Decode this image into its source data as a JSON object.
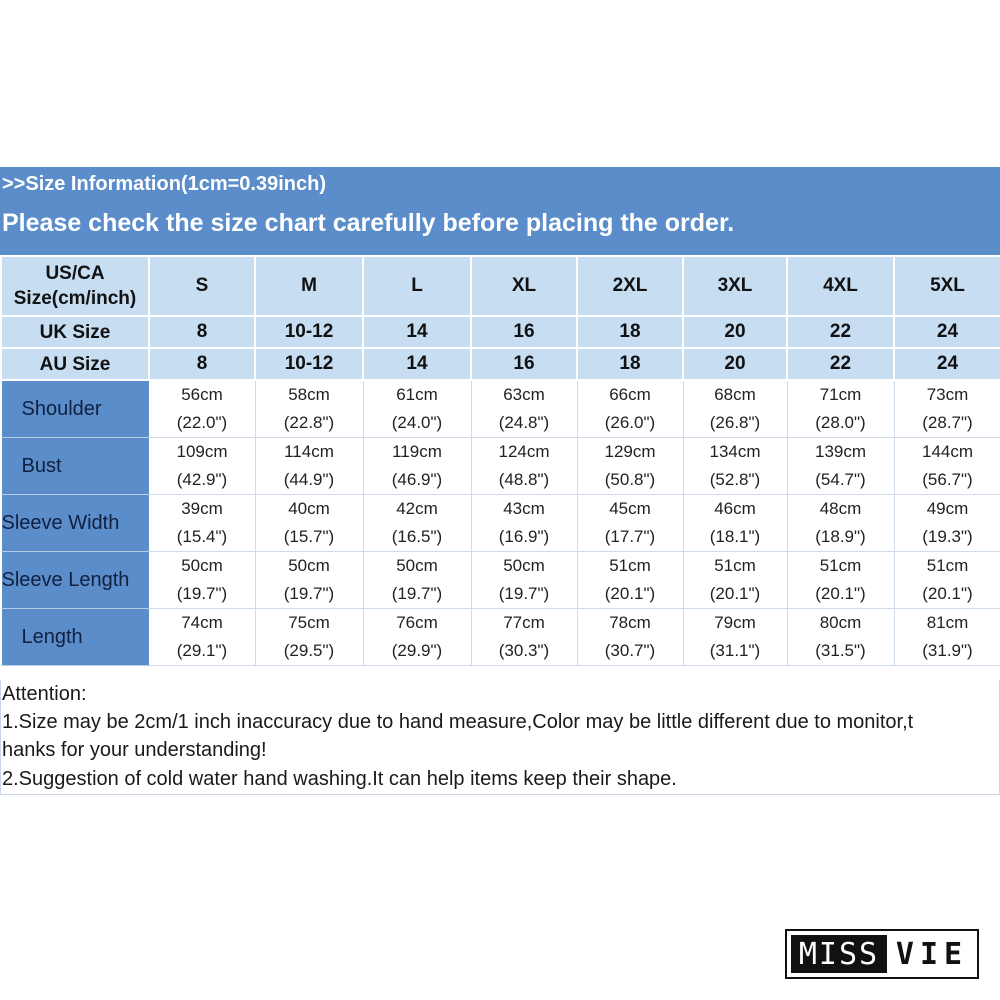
{
  "header": {
    "info": ">>Size Information(1cm=0.39inch)",
    "notice": "Please check the size chart carefully before placing the order."
  },
  "table": {
    "header_rows": [
      {
        "label_lines": [
          "US/CA",
          "Size(cm/inch)"
        ],
        "values": [
          "S",
          "M",
          "L",
          "XL",
          "2XL",
          "3XL",
          "4XL",
          "5XL"
        ]
      },
      {
        "label_lines": [
          "UK Size"
        ],
        "values": [
          "8",
          "10-12",
          "14",
          "16",
          "18",
          "20",
          "22",
          "24"
        ]
      },
      {
        "label_lines": [
          "AU Size"
        ],
        "values": [
          "8",
          "10-12",
          "14",
          "16",
          "18",
          "20",
          "22",
          "24"
        ]
      }
    ],
    "rows": [
      {
        "label": "Shoulder",
        "cm": [
          "56cm",
          "58cm",
          "61cm",
          "63cm",
          "66cm",
          "68cm",
          "71cm",
          "73cm"
        ],
        "inch": [
          "(22.0\")",
          "(22.8\")",
          "(24.0\")",
          "(24.8\")",
          "(26.0\")",
          "(26.8\")",
          "(28.0\")",
          "(28.7\")"
        ]
      },
      {
        "label": "Bust",
        "cm": [
          "109cm",
          "114cm",
          "119cm",
          "124cm",
          "129cm",
          "134cm",
          "139cm",
          "144cm"
        ],
        "inch": [
          "(42.9\")",
          "(44.9\")",
          "(46.9\")",
          "(48.8\")",
          "(50.8\")",
          "(52.8\")",
          "(54.7\")",
          "(56.7\")"
        ]
      },
      {
        "label": "Sleeve Width",
        "cm": [
          "39cm",
          "40cm",
          "42cm",
          "43cm",
          "45cm",
          "46cm",
          "48cm",
          "49cm"
        ],
        "inch": [
          "(15.4\")",
          "(15.7\")",
          "(16.5\")",
          "(16.9\")",
          "(17.7\")",
          "(18.1\")",
          "(18.9\")",
          "(19.3\")"
        ]
      },
      {
        "label": "Sleeve Length",
        "cm": [
          "50cm",
          "50cm",
          "50cm",
          "50cm",
          "51cm",
          "51cm",
          "51cm",
          "51cm"
        ],
        "inch": [
          "(19.7\")",
          "(19.7\")",
          "(19.7\")",
          "(19.7\")",
          "(20.1\")",
          "(20.1\")",
          "(20.1\")",
          "(20.1\")"
        ]
      },
      {
        "label": "Length",
        "cm": [
          "74cm",
          "75cm",
          "76cm",
          "77cm",
          "78cm",
          "79cm",
          "80cm",
          "81cm"
        ],
        "inch": [
          "(29.1\")",
          "(29.5\")",
          "(29.9\")",
          "(30.3\")",
          "(30.7\")",
          "(31.1\")",
          "(31.5\")",
          "(31.9\")"
        ]
      }
    ]
  },
  "notes": {
    "title": "Attention:",
    "line1a": "1.Size may be 2cm/1 inch inaccuracy due to hand measure,Color may be little different due to monitor,t",
    "line1b": "hanks for your understanding!",
    "line2": "2.Suggestion of cold water hand washing.It can help items keep their shape."
  },
  "logo": {
    "left": "MISS",
    "right": "VIE"
  },
  "colors": {
    "header_blue": "#5b8dcb",
    "header_light": "#c7ddf2"
  }
}
